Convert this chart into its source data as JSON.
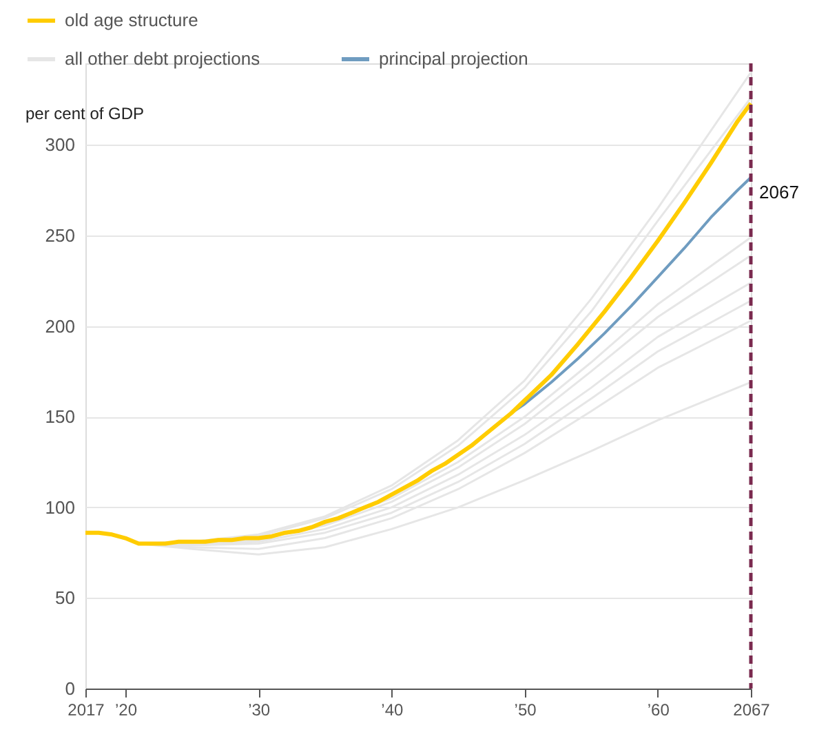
{
  "chart_data": {
    "type": "line",
    "ylabel": "per cent of GDP",
    "legend": "top left",
    "grid": "y",
    "line_style": "solid",
    "marker": "none",
    "xlim": [
      2017,
      2067
    ],
    "xticks": [
      {
        "value": 2017,
        "label": "2017"
      },
      {
        "value": 2020,
        "label": "’20"
      },
      {
        "value": 2030,
        "label": "’30"
      },
      {
        "value": 2040,
        "label": "’40"
      },
      {
        "value": 2050,
        "label": "’50"
      },
      {
        "value": 2060,
        "label": "’60"
      },
      {
        "value": 2067,
        "label": "2067"
      }
    ],
    "ylim": [
      0,
      345
    ],
    "yticks": [
      0,
      50,
      100,
      150,
      200,
      250,
      300
    ],
    "ref_lines": [
      {
        "axis": "x",
        "value": 2067,
        "label": "2067",
        "color": "#7a2a4f",
        "line_style": "dashed"
      }
    ],
    "series": [
      {
        "name": "all other debt projections",
        "color": "#e6e6e6",
        "x": [
          2021,
          2025,
          2030,
          2035,
          2040,
          2045,
          2050,
          2055,
          2060,
          2067
        ],
        "values": [
          80,
          81,
          85,
          95,
          112,
          137,
          170,
          215,
          265,
          340
        ]
      },
      {
        "color": "#e6e6e6",
        "x": [
          2021,
          2025,
          2030,
          2035,
          2040,
          2045,
          2050,
          2055,
          2060,
          2067
        ],
        "values": [
          80,
          81,
          84,
          94,
          110,
          134,
          166,
          208,
          258,
          326
        ]
      },
      {
        "color": "#e6e6e6",
        "x": [
          2021,
          2025,
          2030,
          2035,
          2040,
          2045,
          2050,
          2055,
          2060,
          2067
        ],
        "values": [
          80,
          80,
          83,
          91,
          105,
          125,
          150,
          180,
          212,
          249
        ]
      },
      {
        "color": "#e6e6e6",
        "x": [
          2021,
          2025,
          2030,
          2035,
          2040,
          2045,
          2050,
          2055,
          2060,
          2067
        ],
        "values": [
          80,
          80,
          82,
          90,
          103,
          122,
          146,
          175,
          205,
          239
        ]
      },
      {
        "color": "#e6e6e6",
        "x": [
          2021,
          2025,
          2030,
          2035,
          2040,
          2045,
          2050,
          2055,
          2060,
          2067
        ],
        "values": [
          80,
          79,
          81,
          88,
          100,
          118,
          140,
          166,
          194,
          224
        ]
      },
      {
        "color": "#e6e6e6",
        "x": [
          2021,
          2025,
          2030,
          2035,
          2040,
          2045,
          2050,
          2055,
          2060,
          2067
        ],
        "values": [
          80,
          79,
          80,
          86,
          97,
          114,
          135,
          160,
          186,
          214
        ]
      },
      {
        "color": "#e6e6e6",
        "x": [
          2021,
          2025,
          2030,
          2035,
          2040,
          2045,
          2050,
          2055,
          2060,
          2067
        ],
        "values": [
          80,
          78,
          77,
          83,
          94,
          110,
          130,
          153,
          177,
          203
        ]
      },
      {
        "color": "#e6e6e6",
        "x": [
          2021,
          2025,
          2030,
          2035,
          2040,
          2045,
          2050,
          2055,
          2060,
          2067
        ],
        "values": [
          80,
          77,
          74,
          78,
          88,
          100,
          115,
          131,
          148,
          169
        ]
      },
      {
        "name": "principal projection",
        "color": "#6f9cc0",
        "x": [
          2049,
          2050,
          2052,
          2054,
          2056,
          2058,
          2060,
          2062,
          2064,
          2066,
          2067
        ],
        "values": [
          152,
          157,
          169,
          182,
          196,
          211,
          227,
          243,
          260,
          275,
          282
        ]
      },
      {
        "name": "old age structure",
        "color": "#ffcc00",
        "x": [
          2017,
          2018,
          2019,
          2020,
          2021,
          2022,
          2023,
          2024,
          2025,
          2026,
          2027,
          2028,
          2029,
          2030,
          2031,
          2032,
          2033,
          2034,
          2035,
          2036,
          2037,
          2038,
          2039,
          2040,
          2041,
          2042,
          2043,
          2044,
          2045,
          2046,
          2047,
          2048,
          2049,
          2050,
          2052,
          2054,
          2056,
          2058,
          2060,
          2062,
          2064,
          2066,
          2067
        ],
        "values": [
          86,
          86,
          85,
          83,
          80,
          80,
          80,
          81,
          81,
          81,
          82,
          82,
          83,
          83,
          84,
          86,
          87,
          89,
          92,
          94,
          97,
          100,
          103,
          107,
          111,
          115,
          120,
          124,
          129,
          134,
          140,
          146,
          152,
          159,
          173,
          190,
          208,
          227,
          247,
          268,
          290,
          313,
          323
        ]
      }
    ]
  }
}
